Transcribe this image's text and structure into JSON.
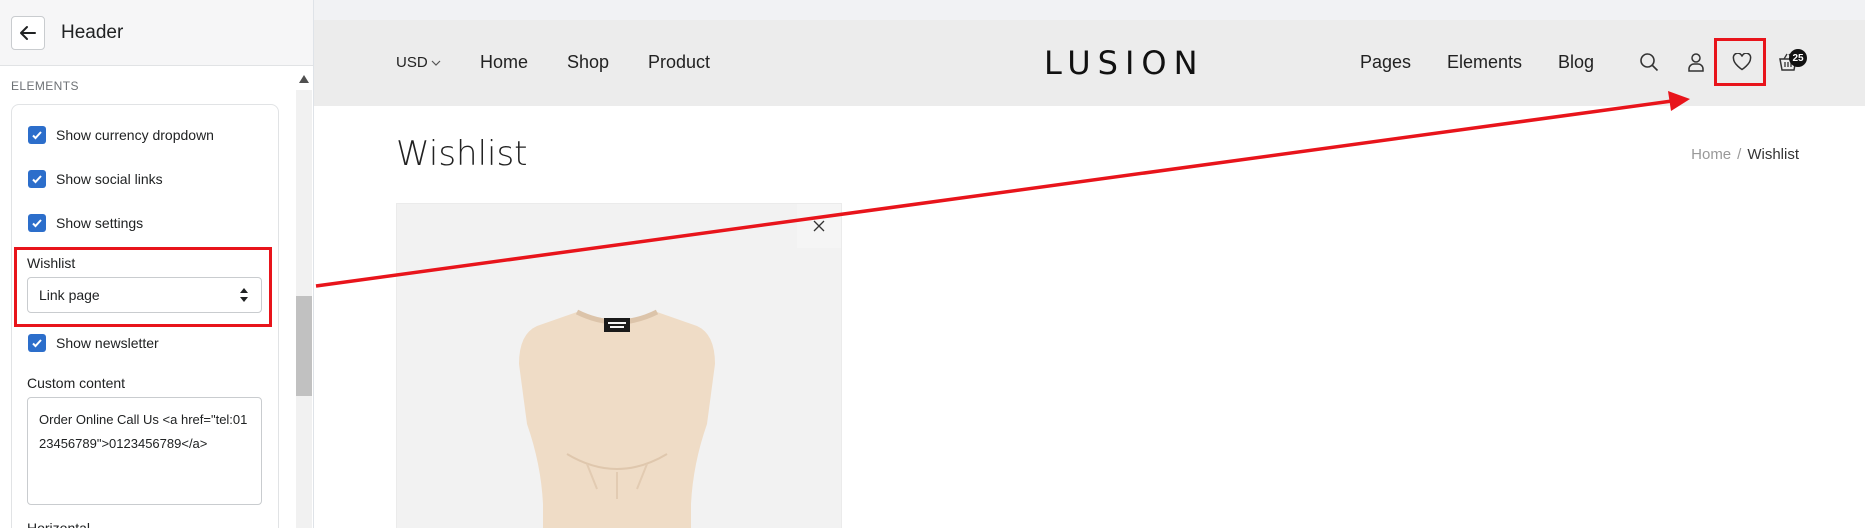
{
  "sidebar": {
    "title": "Header",
    "section_label": "ELEMENTS",
    "checkboxes": [
      {
        "label": "Show currency dropdown",
        "checked": true
      },
      {
        "label": "Show social links",
        "checked": true
      },
      {
        "label": "Show settings",
        "checked": true
      },
      {
        "label": "Show newsletter",
        "checked": true
      }
    ],
    "wishlist": {
      "label": "Wishlist",
      "selected": "Link page"
    },
    "custom_content": {
      "label": "Custom content",
      "value": "Order Online Call Us <a href=\"tel:0123456789\">0123456789</a>"
    },
    "next_label": "Horizontal"
  },
  "preview": {
    "currency": "USD",
    "nav_left": [
      "Home",
      "Shop",
      "Product"
    ],
    "logo": "LUSION",
    "nav_right": [
      "Pages",
      "Elements",
      "Blog"
    ],
    "icons": [
      "search-icon",
      "account-icon",
      "heart-icon",
      "cart-icon"
    ],
    "cart_count": "25",
    "page_title": "Wishlist",
    "breadcrumb": {
      "home": "Home",
      "separator": "/",
      "current": "Wishlist"
    }
  },
  "colors": {
    "accent": "#2c6ecb",
    "highlight": "#e8141b",
    "header_bg": "#ececec"
  }
}
